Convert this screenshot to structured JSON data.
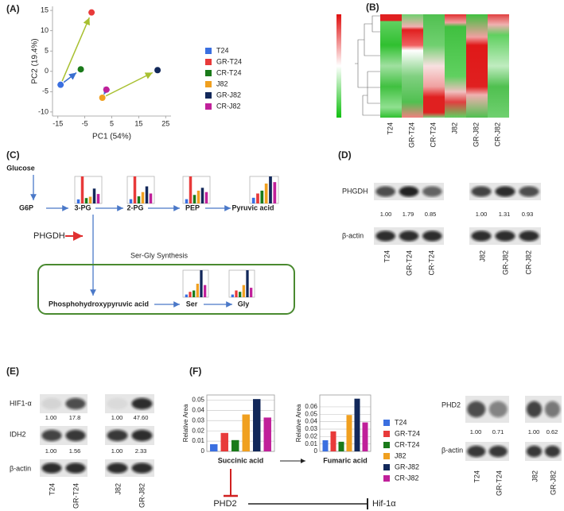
{
  "chart_data": [
    {
      "type": "scatter",
      "xlabel": "PC1 (54%)",
      "ylabel": "PC2 (19.4%)",
      "xlim": [
        -17,
        27
      ],
      "ylim": [
        -11,
        16
      ],
      "xticks": [
        -15,
        -5,
        5,
        15,
        25
      ],
      "yticks": [
        -10,
        -5,
        0,
        5,
        10,
        15
      ],
      "series": [
        {
          "name": "T24",
          "color": "#3a6fe0",
          "x": [
            -14
          ],
          "values": [
            -3.3
          ]
        },
        {
          "name": "GR-T24",
          "color": "#e83a3a",
          "x": [
            -2.5
          ],
          "values": [
            14.5
          ]
        },
        {
          "name": "CR-T24",
          "color": "#1a7a1a",
          "x": [
            -6.5
          ],
          "values": [
            0.5
          ]
        },
        {
          "name": "J82",
          "color": "#f0a020",
          "x": [
            1.5
          ],
          "values": [
            -6.5
          ]
        },
        {
          "name": "GR-J82",
          "color": "#12285a",
          "x": [
            22
          ],
          "values": [
            0.3
          ]
        },
        {
          "name": "CR-J82",
          "color": "#c0209a",
          "x": [
            3
          ],
          "values": [
            -4.5
          ]
        }
      ]
    },
    {
      "type": "bar",
      "ylabel": "Relative Area",
      "xlabel": "Succinic acid",
      "ylim": [
        0,
        0.055
      ],
      "yticks": [
        0,
        0.01,
        0.02,
        0.03,
        0.04,
        0.05
      ],
      "grid": true,
      "series": [
        {
          "name": "T24",
          "color": "#3a6fe0",
          "values": [
            0.007
          ]
        },
        {
          "name": "GR-T24",
          "color": "#e83a3a",
          "values": [
            0.018
          ]
        },
        {
          "name": "CR-T24",
          "color": "#1a7a1a",
          "values": [
            0.011
          ]
        },
        {
          "name": "J82",
          "color": "#f0a020",
          "values": [
            0.036
          ]
        },
        {
          "name": "GR-J82",
          "color": "#12285a",
          "values": [
            0.051
          ]
        },
        {
          "name": "CR-J82",
          "color": "#c0209a",
          "values": [
            0.033
          ]
        }
      ]
    },
    {
      "type": "bar",
      "ylabel": "Relative Area",
      "xlabel": "Fumaric acid",
      "ylim": [
        0,
        0.076
      ],
      "yticks": [
        0,
        0.01,
        0.02,
        0.03,
        0.04,
        0.05,
        0.06
      ],
      "grid": true,
      "values": [
        0.015,
        0.027,
        0.013,
        0.049,
        0.071,
        0.039
      ],
      "colors": [
        "#3a6fe0",
        "#e83a3a",
        "#1a7a1a",
        "#f0a020",
        "#12285a",
        "#c0209a"
      ]
    },
    {
      "type": "bar",
      "values": [
        0.15,
        1.0,
        0.2,
        0.25,
        0.55,
        0.35
      ],
      "colors": [
        "#3a6fe0",
        "#e83a3a",
        "#1a7a1a",
        "#f0a020",
        "#12285a",
        "#c0209a"
      ]
    },
    {
      "type": "bar",
      "values": [
        0.15,
        0.95,
        0.25,
        0.4,
        0.6,
        0.35
      ],
      "colors": [
        "#3a6fe0",
        "#e83a3a",
        "#1a7a1a",
        "#f0a020",
        "#12285a",
        "#c0209a"
      ]
    },
    {
      "type": "bar",
      "values": [
        0.15,
        0.95,
        0.3,
        0.45,
        0.55,
        0.4
      ],
      "colors": [
        "#3a6fe0",
        "#e83a3a",
        "#1a7a1a",
        "#f0a020",
        "#12285a",
        "#c0209a"
      ]
    },
    {
      "type": "bar",
      "values": [
        0.2,
        0.35,
        0.45,
        0.7,
        0.95,
        0.75
      ],
      "colors": [
        "#3a6fe0",
        "#e83a3a",
        "#1a7a1a",
        "#f0a020",
        "#12285a",
        "#c0209a"
      ]
    },
    {
      "type": "bar",
      "values": [
        0.1,
        0.2,
        0.25,
        0.5,
        1.0,
        0.45
      ],
      "colors": [
        "#3a6fe0",
        "#e83a3a",
        "#1a7a1a",
        "#f0a020",
        "#12285a",
        "#c0209a"
      ]
    },
    {
      "type": "bar",
      "values": [
        0.1,
        0.25,
        0.2,
        0.45,
        1.0,
        0.35
      ],
      "colors": [
        "#3a6fe0",
        "#e83a3a",
        "#1a7a1a",
        "#f0a020",
        "#12285a",
        "#c0209a"
      ]
    }
  ],
  "panels": {
    "labels": [
      "(A)",
      "(B)",
      "(C)",
      "(D)",
      "(E)",
      "(F)"
    ],
    "heatmap": {
      "columns": [
        "T24",
        "GR-T24",
        "CR-T24",
        "J82",
        "GR-J82",
        "CR-J82"
      ]
    },
    "pathway": {
      "nodes": [
        "Glucose",
        "G6P",
        "3-PG",
        "2-PG",
        "PEP",
        "Pyruvic acid",
        "Phosphohydroxypyruvic  acid",
        "Ser",
        "Gly"
      ],
      "enzyme": "PHGDH",
      "box_label": "Ser-Gly Synthesis"
    },
    "blot_d": {
      "rows": [
        "PHGDH",
        "β-actin"
      ],
      "quant": [
        "1.00",
        "1.79",
        "0.85",
        "1.00",
        "1.31",
        "0.93"
      ],
      "lanes": [
        "T24",
        "GR-T24",
        "CR-T24",
        "J82",
        "GR-J82",
        "CR-J82"
      ]
    },
    "blot_e": {
      "rows": [
        "HIF1-α",
        "IDH2",
        "β-actin"
      ],
      "quant_hif": [
        "1.00",
        "17.8",
        "1.00",
        "47.60"
      ],
      "quant_idh2": [
        "1.00",
        "1.56",
        "1.00",
        "2.33"
      ],
      "lanes": [
        "T24",
        "GR-T24",
        "J82",
        "GR-J82"
      ]
    },
    "signaling": {
      "nodes": [
        "PHD2",
        "Hif-1α"
      ]
    },
    "blot_f": {
      "rows": [
        "PHD2",
        "β-actin"
      ],
      "quant": [
        "1.00",
        "0.71",
        "1.00",
        "0.62"
      ],
      "lanes": [
        "T24",
        "GR-T24",
        "J82",
        "GR-J82"
      ]
    }
  }
}
